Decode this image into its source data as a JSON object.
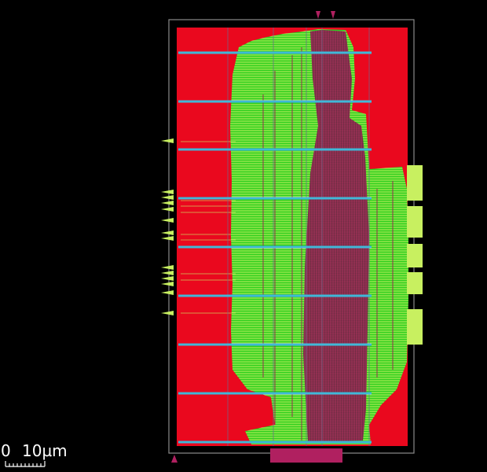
{
  "scale_bar": {
    "zero_label": "0",
    "ten_label": "10µm"
  },
  "colors": {
    "background": "#000000",
    "die_outline": "#8a8a8a",
    "core_fill": "#e8001a",
    "placement_green": "#22cc22",
    "wire_yellowgreen": "#c8f060",
    "wire_magenta": "#9a1a52",
    "power_rail": "#40b8d8",
    "pin_marker": "#c8f060"
  },
  "layers": [
    "die-outline",
    "core-area",
    "standard-cells",
    "routing",
    "power-rails",
    "io-pins"
  ]
}
